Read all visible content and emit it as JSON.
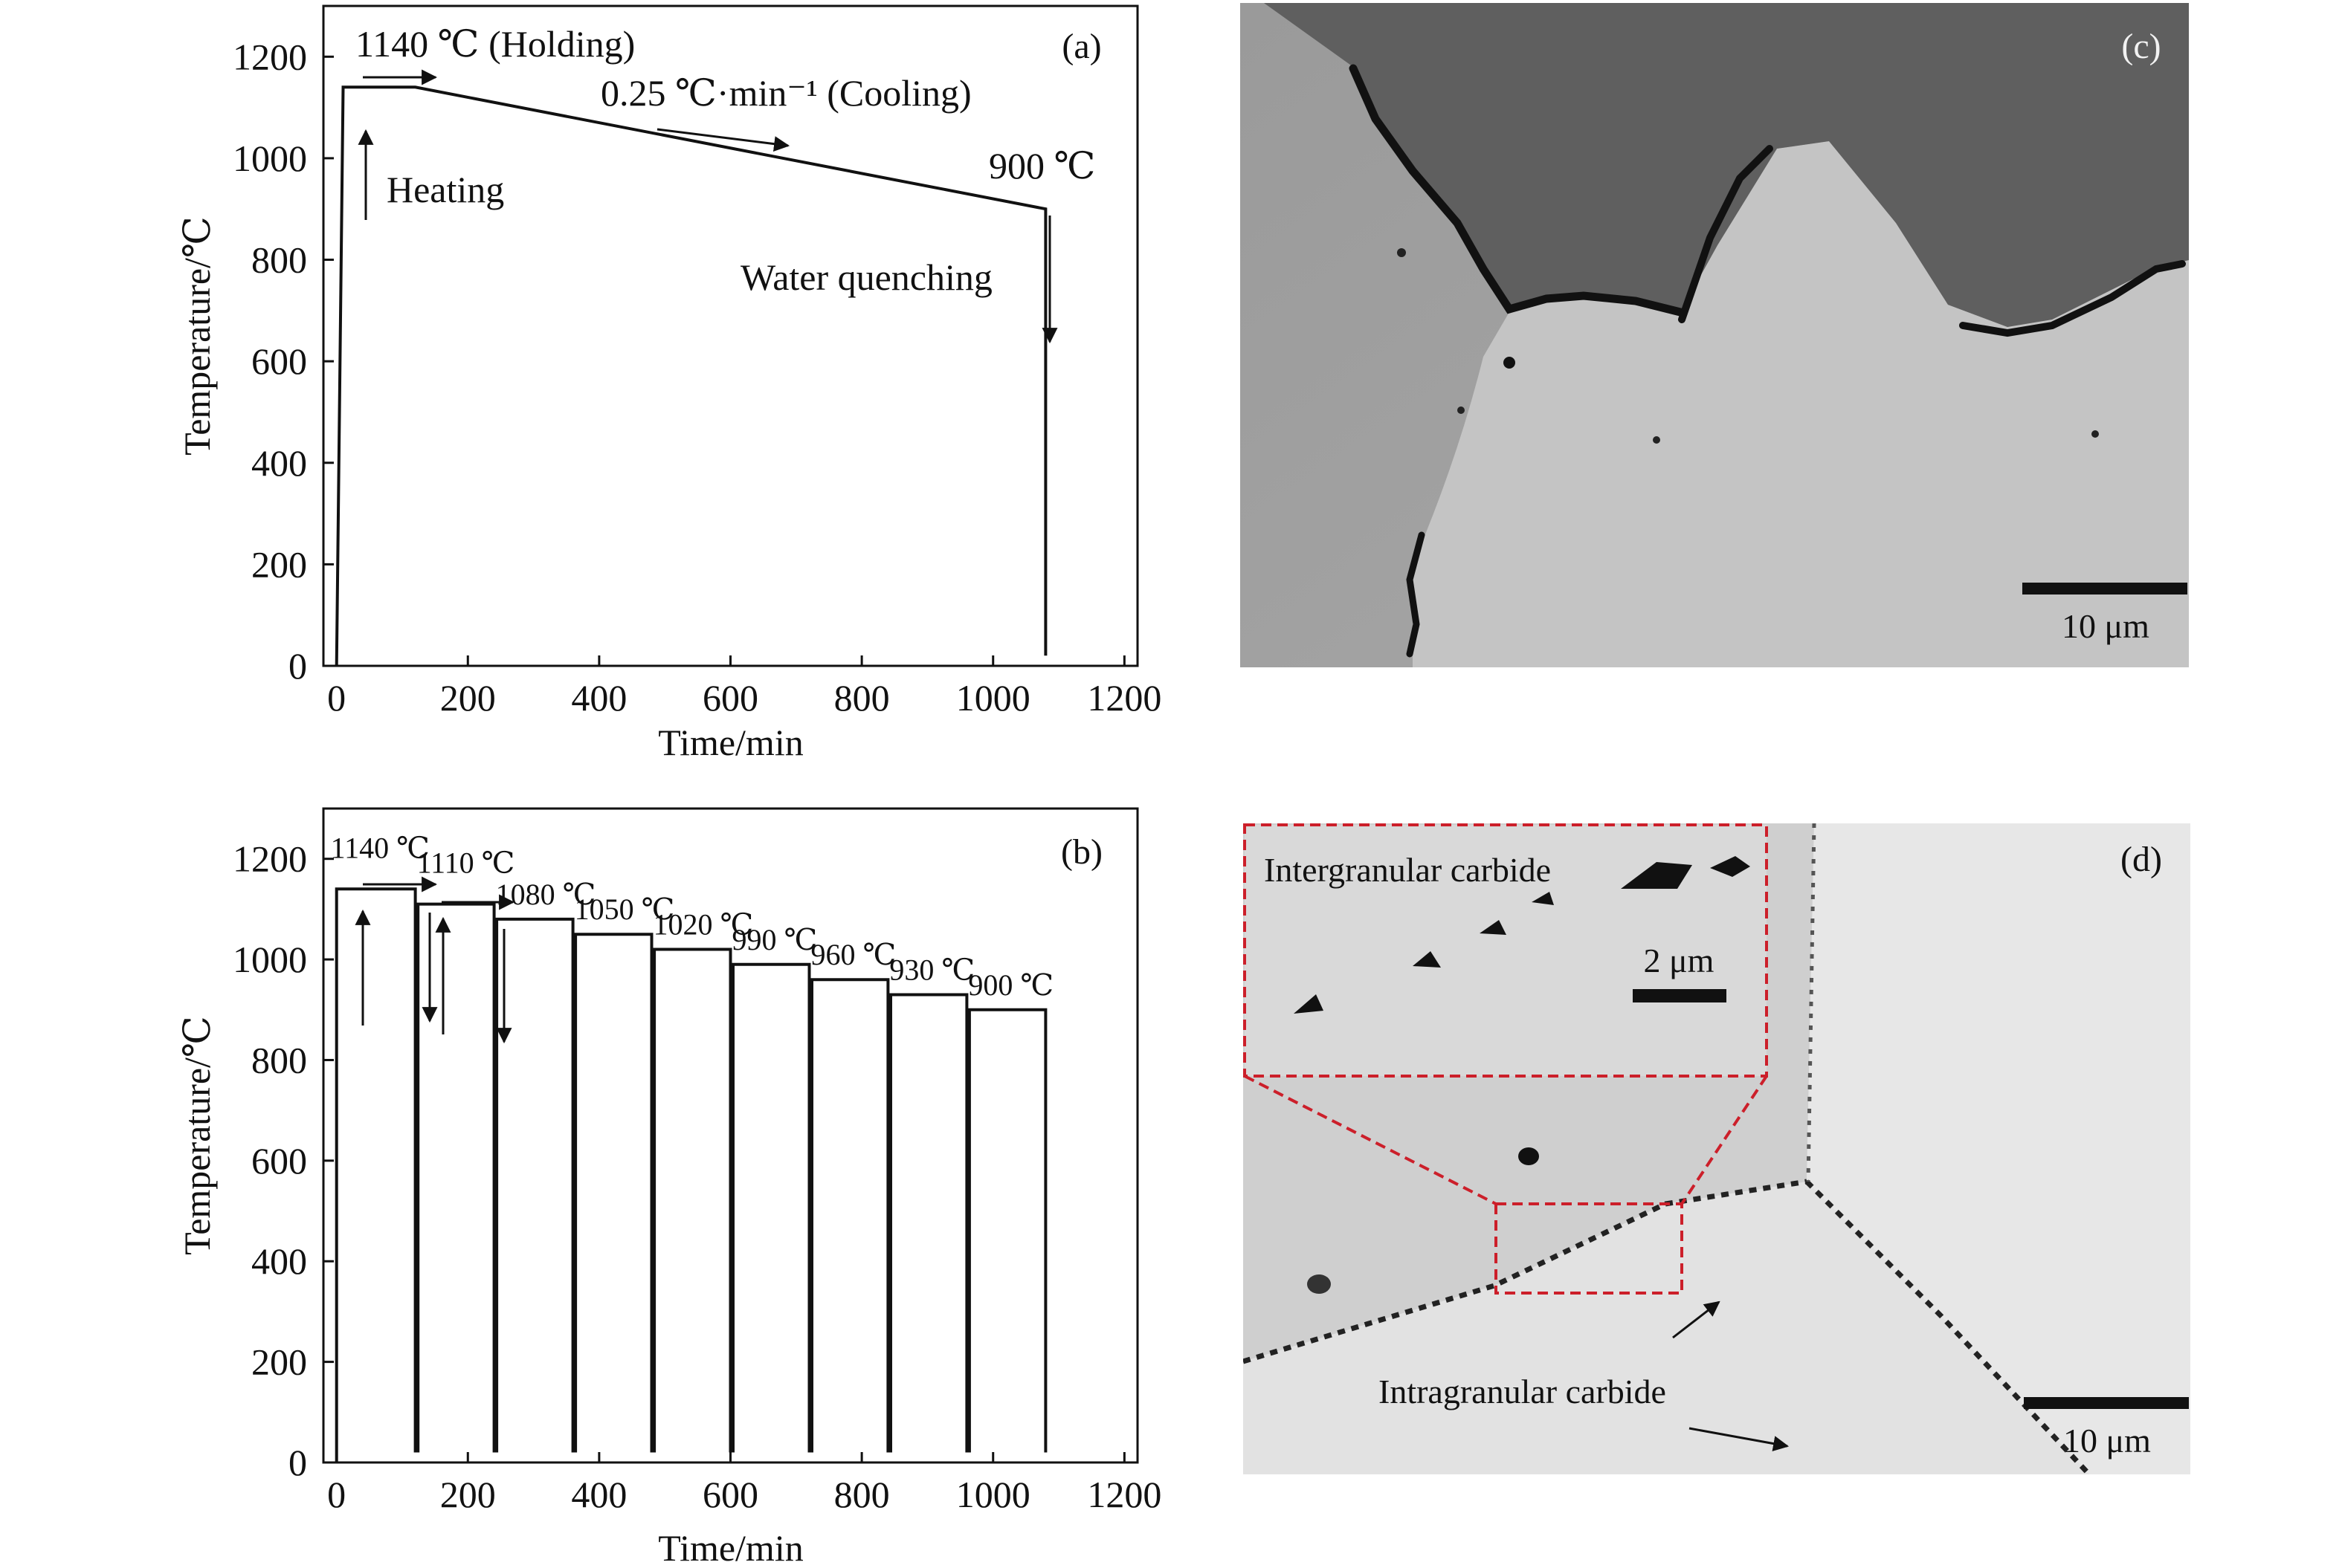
{
  "chart_data": [
    {
      "type": "line",
      "panel_label": "(a)",
      "xlabel": "Time/min",
      "ylabel": "Temperature/℃",
      "xlim": [
        -20,
        1220
      ],
      "ylim": [
        0,
        1300
      ],
      "xticks": [
        0,
        200,
        400,
        600,
        800,
        1000,
        1200
      ],
      "yticks": [
        0,
        200,
        400,
        600,
        800,
        1000,
        1200
      ],
      "series": [
        {
          "x": [
            0,
            10,
            120,
            1080,
            1080
          ],
          "y": [
            0,
            1140,
            1140,
            900,
            20
          ]
        }
      ],
      "annotations": {
        "holding": "1140 ℃ (Holding)",
        "cooling": "0.25 ℃·min⁻¹ (Cooling)",
        "heating": "Heating",
        "final_temp": "900 ℃",
        "quench": "Water quenching"
      }
    },
    {
      "type": "line",
      "panel_label": "(b)",
      "xlabel": "Time/min",
      "ylabel": "Temperature/℃",
      "xlim": [
        -20,
        1220
      ],
      "ylim": [
        0,
        1300
      ],
      "xticks": [
        0,
        200,
        400,
        600,
        800,
        1000,
        1200
      ],
      "yticks": [
        0,
        200,
        400,
        600,
        800,
        1000,
        1200
      ],
      "steps": [
        {
          "start": 0,
          "end": 120,
          "temp": 1140,
          "label": "1140 ℃"
        },
        {
          "start": 120,
          "end": 240,
          "temp": 1110,
          "label": "1110 ℃"
        },
        {
          "start": 240,
          "end": 360,
          "temp": 1080,
          "label": "1080 ℃"
        },
        {
          "start": 360,
          "end": 480,
          "temp": 1050,
          "label": "1050 ℃"
        },
        {
          "start": 480,
          "end": 600,
          "temp": 1020,
          "label": "1020 ℃"
        },
        {
          "start": 600,
          "end": 720,
          "temp": 990,
          "label": "990 ℃"
        },
        {
          "start": 720,
          "end": 840,
          "temp": 960,
          "label": "960 ℃"
        },
        {
          "start": 840,
          "end": 960,
          "temp": 930,
          "label": "930 ℃"
        },
        {
          "start": 960,
          "end": 1080,
          "temp": 900,
          "label": "900 ℃"
        }
      ]
    }
  ],
  "micrographs": {
    "c": {
      "label": "(c)",
      "scale_bar": "10 μm"
    },
    "d": {
      "label": "(d)",
      "scale_bar": "10 μm",
      "inset_title": "Intergranular carbide",
      "inset_scale": "2 μm",
      "intragranular": "Intragranular carbide"
    }
  }
}
